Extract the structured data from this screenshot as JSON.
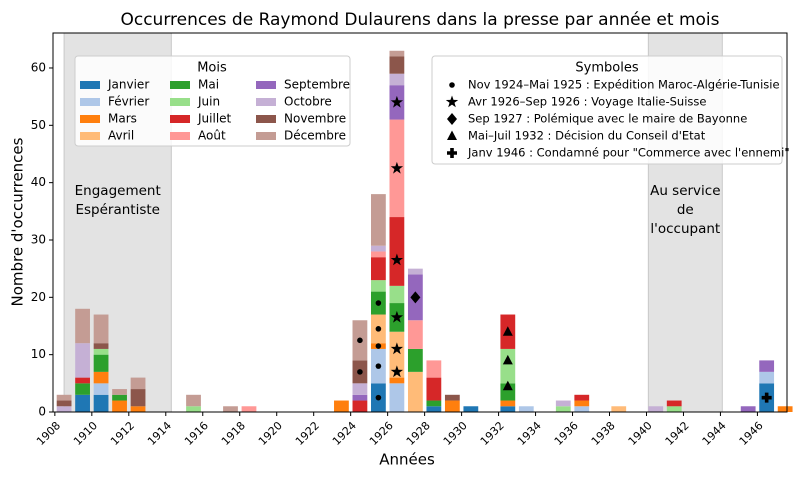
{
  "chart_data": {
    "type": "stacked-bar",
    "title": "Occurrences de Raymond Dulaurens dans la presse par année et mois",
    "x_label": "Années",
    "y_label": "Nombre d'occurrences",
    "x": [
      1908,
      1909,
      1910,
      1911,
      1912,
      1915,
      1917,
      1918,
      1923,
      1924,
      1925,
      1926,
      1927,
      1928,
      1929,
      1930,
      1932,
      1933,
      1935,
      1936,
      1938,
      1940,
      1941,
      1945,
      1946,
      1947
    ],
    "legend_title": "Mois",
    "series": [
      {
        "name": "Janvier",
        "color": "#1f77b4",
        "values": [
          0,
          3,
          3,
          0,
          0,
          0,
          0,
          0,
          0,
          0,
          5,
          0,
          0,
          1,
          0,
          1,
          1,
          0,
          0,
          0,
          0,
          0,
          0,
          0,
          5,
          0
        ]
      },
      {
        "name": "Février",
        "color": "#aec7e8",
        "values": [
          0,
          0,
          2,
          0,
          0,
          0,
          0,
          0,
          0,
          0,
          6,
          5,
          0,
          0,
          0,
          0,
          0,
          1,
          0,
          1,
          0,
          0,
          0,
          0,
          2,
          0
        ]
      },
      {
        "name": "Mars",
        "color": "#ff7f0e",
        "values": [
          0,
          0,
          2,
          2,
          1,
          0,
          0,
          0,
          2,
          0,
          1,
          1,
          0,
          0,
          2,
          0,
          1,
          0,
          0,
          1,
          0,
          0,
          0,
          0,
          0,
          1
        ]
      },
      {
        "name": "Avril",
        "color": "#ffbb78",
        "values": [
          0,
          0,
          0,
          0,
          0,
          0,
          0,
          0,
          0,
          0,
          5,
          8,
          7,
          0,
          0,
          0,
          0,
          0,
          0,
          0,
          1,
          0,
          0,
          0,
          0,
          0
        ]
      },
      {
        "name": "Mai",
        "color": "#2ca02c",
        "values": [
          0,
          2,
          3,
          1,
          0,
          0,
          0,
          0,
          0,
          0,
          4,
          5,
          4,
          1,
          0,
          0,
          3,
          0,
          0,
          0,
          0,
          0,
          0,
          0,
          0,
          0
        ]
      },
      {
        "name": "Juin",
        "color": "#98df8a",
        "values": [
          0,
          0,
          1,
          0,
          0,
          1,
          0,
          0,
          0,
          0,
          2,
          3,
          0,
          0,
          0,
          0,
          6,
          0,
          1,
          0,
          0,
          0,
          1,
          0,
          0,
          0
        ]
      },
      {
        "name": "Juillet",
        "color": "#d62728",
        "values": [
          0,
          1,
          0,
          0,
          0,
          0,
          0,
          0,
          0,
          2,
          4,
          12,
          0,
          4,
          0,
          0,
          6,
          0,
          0,
          1,
          0,
          0,
          1,
          0,
          0,
          0
        ]
      },
      {
        "name": "Août",
        "color": "#ff9896",
        "values": [
          0,
          0,
          0,
          0,
          0,
          0,
          0,
          1,
          0,
          0,
          1,
          17,
          5,
          3,
          0,
          0,
          0,
          0,
          0,
          0,
          0,
          0,
          0,
          0,
          0,
          0
        ]
      },
      {
        "name": "Septembre",
        "color": "#9467bd",
        "values": [
          0,
          0,
          0,
          0,
          0,
          0,
          0,
          0,
          0,
          1,
          0,
          6,
          8,
          0,
          0,
          0,
          0,
          0,
          0,
          0,
          0,
          0,
          0,
          1,
          2,
          0
        ]
      },
      {
        "name": "Octobre",
        "color": "#c5b0d5",
        "values": [
          1,
          6,
          0,
          0,
          0,
          0,
          0,
          0,
          0,
          2,
          1,
          2,
          1,
          0,
          0,
          0,
          0,
          0,
          1,
          0,
          0,
          1,
          0,
          0,
          0,
          0
        ]
      },
      {
        "name": "Novembre",
        "color": "#8c564b",
        "values": [
          1,
          0,
          1,
          0,
          3,
          0,
          0,
          0,
          0,
          4,
          0,
          3,
          0,
          0,
          1,
          0,
          0,
          0,
          0,
          0,
          0,
          0,
          0,
          0,
          0,
          0
        ]
      },
      {
        "name": "Décembre",
        "color": "#c49c94",
        "values": [
          1,
          6,
          5,
          1,
          2,
          2,
          1,
          0,
          0,
          7,
          9,
          1,
          0,
          0,
          0,
          0,
          0,
          0,
          0,
          0,
          0,
          0,
          0,
          0,
          0,
          0
        ]
      }
    ],
    "symbols_title": "Symboles",
    "markers": [
      {
        "name": "Nov 1924–Mai 1925 : Expédition Maroc-Algérie-Tunisie",
        "marker": "dot",
        "x": [
          1924,
          1924,
          1925,
          1925,
          1925,
          1925,
          1925
        ],
        "y": [
          7,
          12.5,
          2.5,
          8,
          11.5,
          14.5,
          19
        ]
      },
      {
        "name": "Avr 1926–Sep 1926 : Voyage Italie-Suisse",
        "marker": "star",
        "x": [
          1926,
          1926,
          1926,
          1926,
          1926,
          1926
        ],
        "y": [
          7,
          11,
          16.5,
          26.5,
          42.5,
          54
        ]
      },
      {
        "name": "Sep 1927 : Polémique avec le maire de Bayonne",
        "marker": "diamond",
        "x": [
          1927
        ],
        "y": [
          20
        ]
      },
      {
        "name": "Mai–Juil 1932 : Décision du Conseil d'Etat",
        "marker": "triangle",
        "x": [
          1932,
          1932,
          1932
        ],
        "y": [
          4.5,
          9,
          14
        ]
      },
      {
        "name": "Janv 1946 : Condamné pour \"Commerce avec l'ennemi\"",
        "marker": "plus",
        "x": [
          1946
        ],
        "y": [
          2.5
        ]
      }
    ],
    "spans": [
      {
        "xlim": [
          1908.5,
          1914.3
        ],
        "lines": [
          "Engagement",
          "Espérantiste"
        ]
      },
      {
        "xlim": [
          1940.1,
          1944.1
        ],
        "lines": [
          "Au service",
          "de",
          "l'occupant"
        ]
      }
    ],
    "xlim": [
      1907.9,
      1947.6
    ],
    "ylim": [
      0,
      66.1
    ],
    "xticks": [
      1908,
      1910,
      1912,
      1914,
      1916,
      1918,
      1920,
      1922,
      1924,
      1926,
      1928,
      1930,
      1932,
      1934,
      1936,
      1938,
      1940,
      1942,
      1944,
      1946
    ],
    "yticks": [
      0,
      10,
      20,
      30,
      40,
      50,
      60
    ]
  }
}
